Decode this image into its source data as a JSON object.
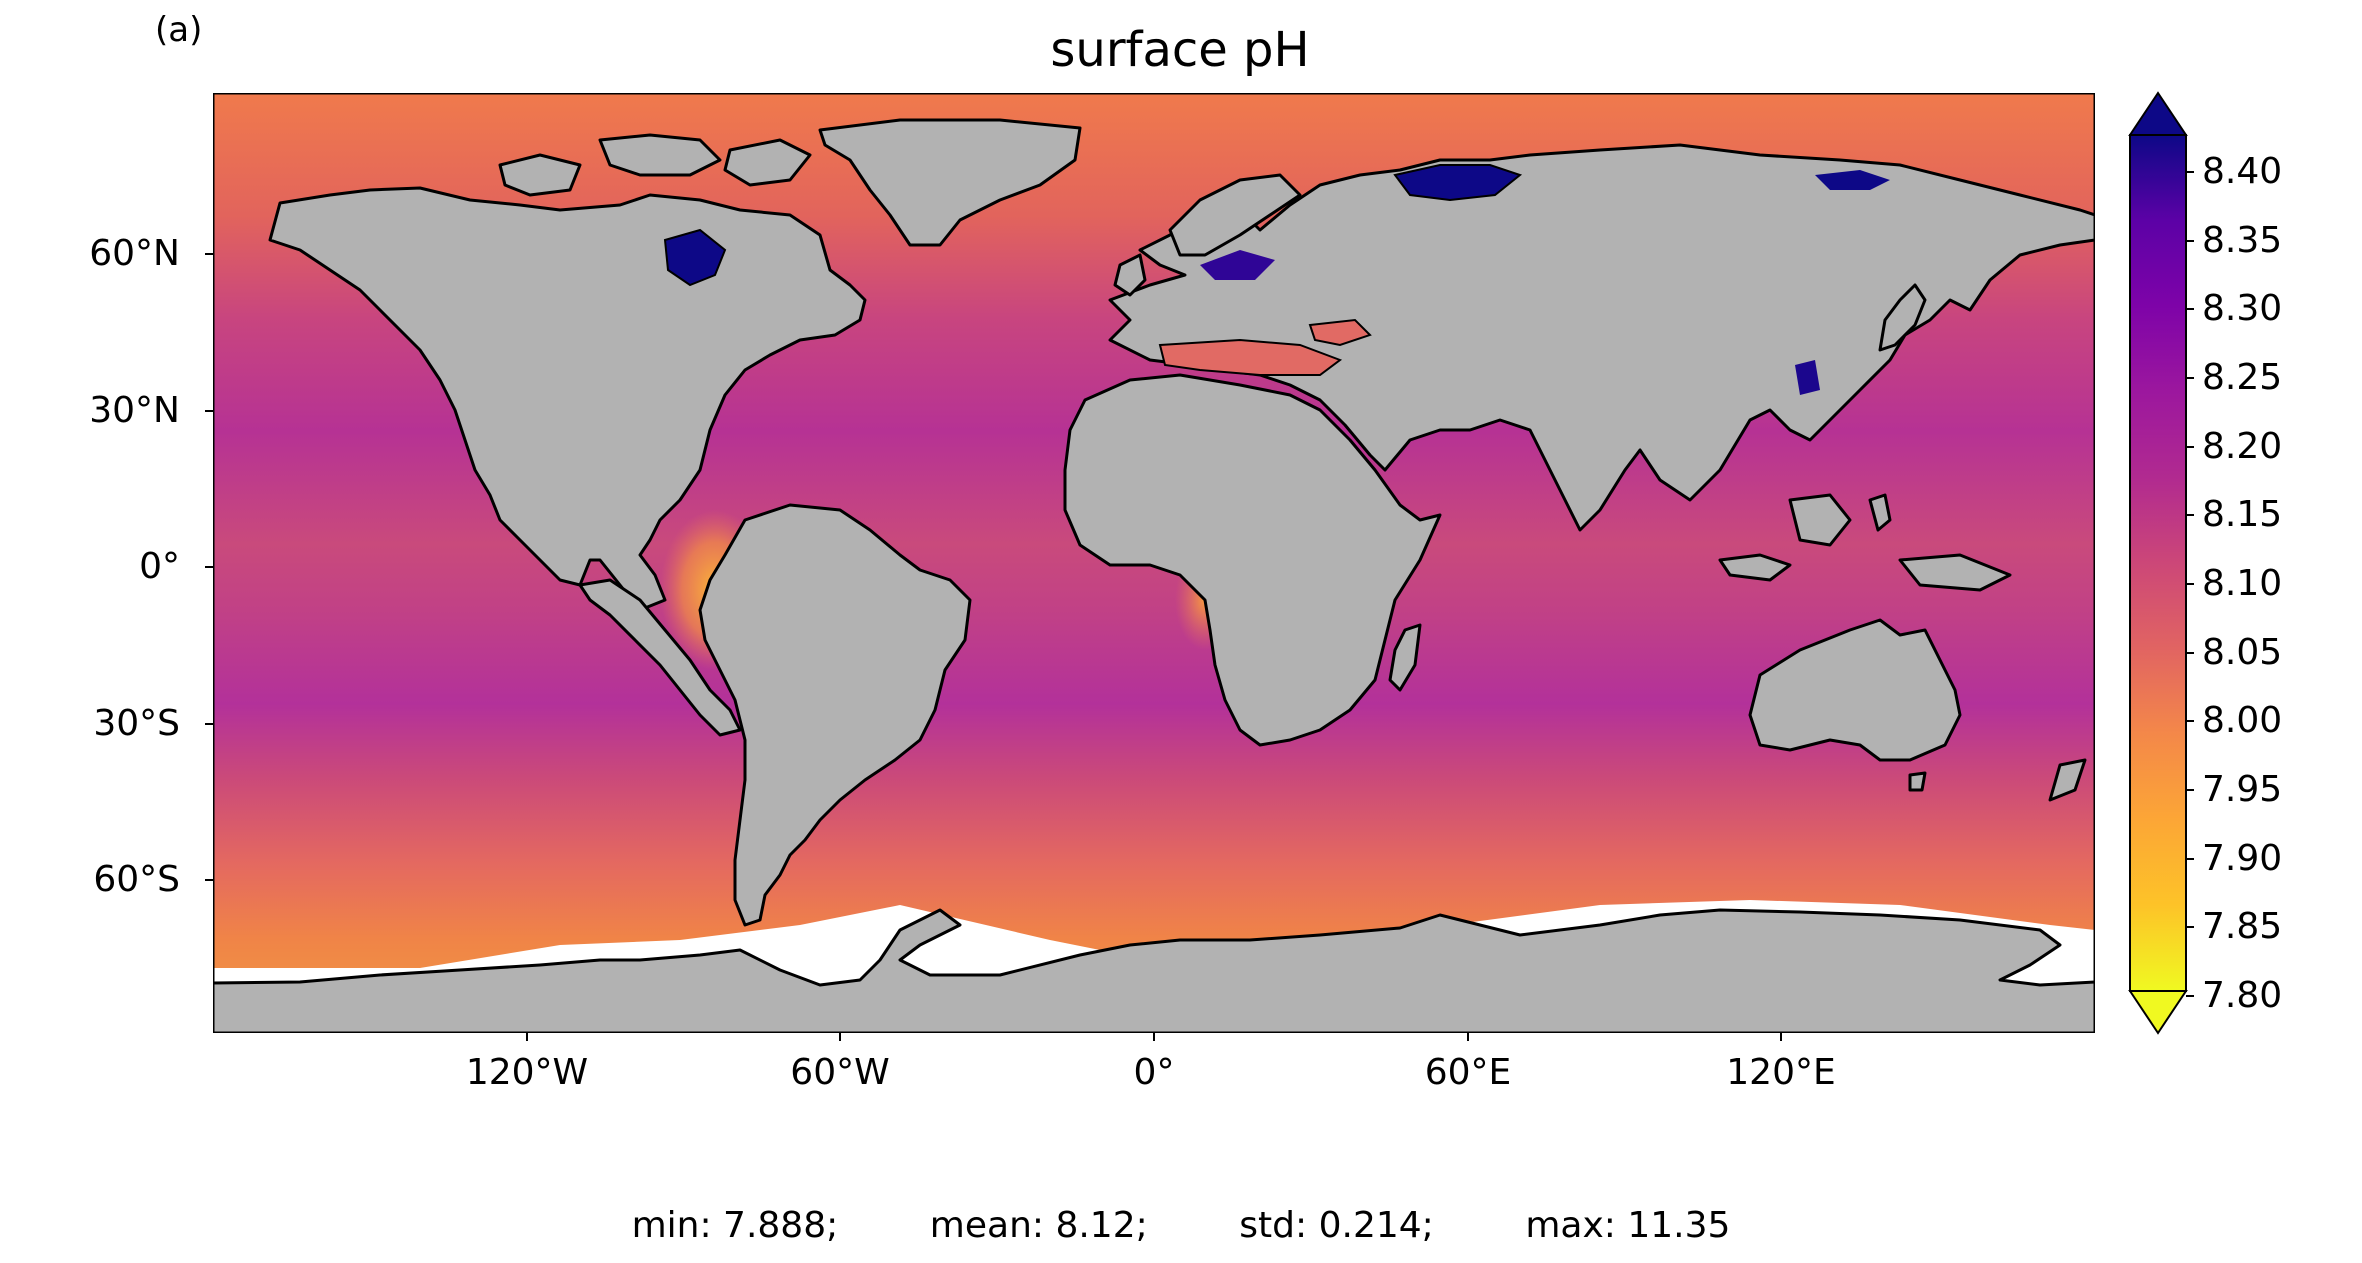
{
  "figure": {
    "panel_label": "(a)",
    "title": "surface pH"
  },
  "map": {
    "projection": "PlateCarree",
    "extent_lon": [
      -180,
      180
    ],
    "extent_lat": [
      -90,
      90
    ],
    "land_color": "#b2b2b2",
    "ice_color": "#ffffff",
    "coastline_color": "#000000",
    "lat_ticks": [
      "60°N",
      "30°N",
      "0°",
      "30°S",
      "60°S"
    ],
    "lon_ticks": [
      "120°W",
      "60°W",
      "0°",
      "60°E",
      "120°E"
    ]
  },
  "colorbar": {
    "colormap": "plasma_r",
    "extend": "both",
    "range": [
      7.8,
      8.4
    ],
    "ticks": [
      "8.40",
      "8.35",
      "8.30",
      "8.25",
      "8.20",
      "8.15",
      "8.10",
      "8.05",
      "8.00",
      "7.95",
      "7.90",
      "7.85",
      "7.80"
    ],
    "under_color": "#f0f921",
    "over_color": "#0d0887"
  },
  "stats": {
    "min": "min: 7.888;",
    "mean": "mean: 8.12;",
    "std": "std: 0.214;",
    "max": "max: 11.35"
  }
}
